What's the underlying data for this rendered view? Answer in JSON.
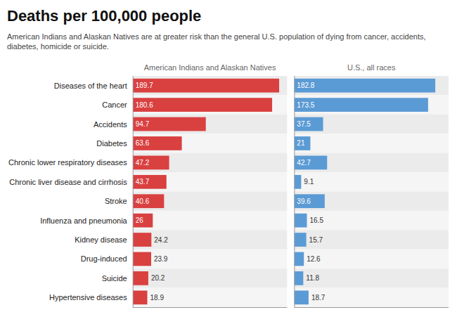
{
  "chart_data": {
    "type": "bar",
    "orientation": "horizontal",
    "title": "Deaths per 100,000 people",
    "subtitle": "American Indians and Alaskan Natives are at greater risk than the general U.S. population of dying from cancer, accidents,\ndiabetes, homicide or suicide.",
    "categories": [
      "Diseases of the heart",
      "Cancer",
      "Accidents",
      "Diabetes",
      "Chronic lower respiratory diseases",
      "Chronic liver disease and cirrhosis",
      "Stroke",
      "Influenza and pneumonia",
      "Kidney disease",
      "Drug-induced",
      "Suicide",
      "Hypertensive diseases"
    ],
    "series": [
      {
        "name": "American Indians and Alaskan Natives",
        "color": "#d94040",
        "values": [
          189.7,
          180.6,
          94.7,
          63.6,
          47.2,
          43.7,
          40.6,
          26,
          24.2,
          23.9,
          20.2,
          18.9
        ]
      },
      {
        "name": "U.S., all races",
        "color": "#5b9bd5",
        "values": [
          182.8,
          173.5,
          37.5,
          21,
          42.7,
          9.1,
          39.6,
          16.5,
          15.7,
          12.6,
          11.8,
          18.7
        ]
      }
    ],
    "xlim": [
      0,
      200
    ],
    "grid": false,
    "data_labels": true,
    "tick_labels": "y"
  }
}
